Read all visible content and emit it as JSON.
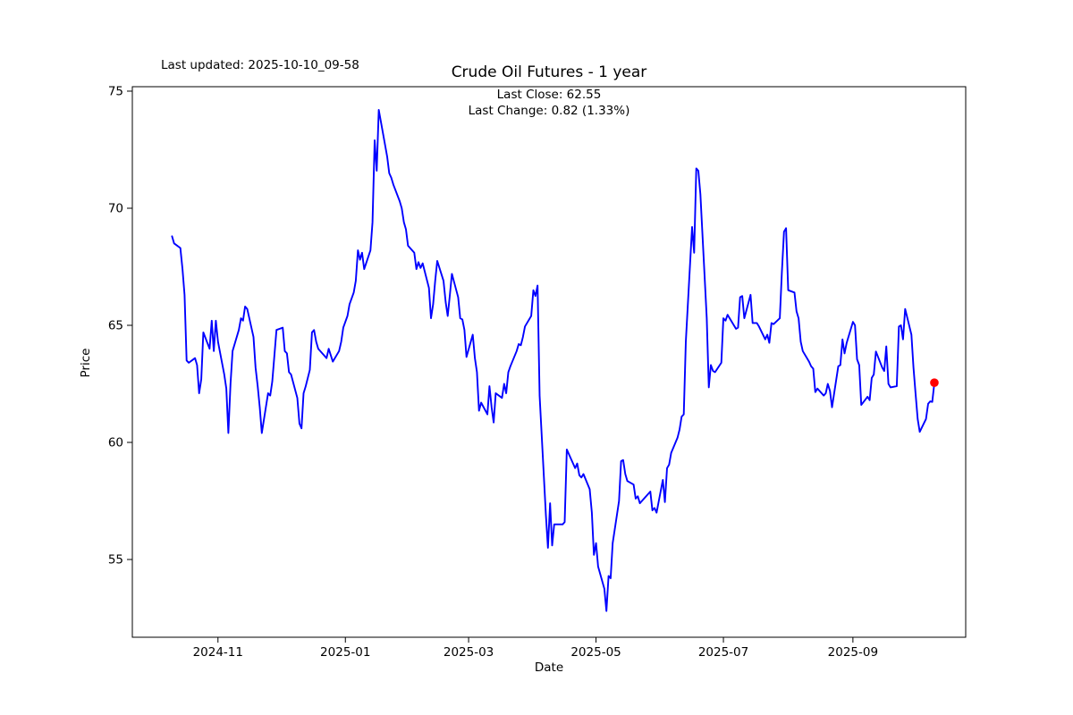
{
  "header": {
    "last_updated": "Last updated: 2025-10-10_09-58",
    "title": "Crude Oil Futures - 1 year",
    "annotation_line1": "Last Close: 62.55",
    "annotation_line2": "Last Change: 0.82 (1.33%)"
  },
  "chart_data": {
    "type": "line",
    "title": "Crude Oil Futures - 1 year",
    "xlabel": "Date",
    "ylabel": "Price",
    "last_close": 62.55,
    "last_change": 0.82,
    "last_change_pct": "1.33%",
    "line_color": "#0000ff",
    "marker_color": "#ff0000",
    "axis_color": "#000000",
    "grid": false,
    "legend": null,
    "ylim": [
      51.68,
      75.19
    ],
    "xlim": [
      "2024-09-21",
      "2025-10-25"
    ],
    "y_ticks": [
      55,
      60,
      65,
      70,
      75
    ],
    "x_ticks": [
      {
        "label": "2024-11",
        "date": "2024-11-01"
      },
      {
        "label": "2025-01",
        "date": "2025-01-01"
      },
      {
        "label": "2025-03",
        "date": "2025-03-01"
      },
      {
        "label": "2025-05",
        "date": "2025-05-01"
      },
      {
        "label": "2025-07",
        "date": "2025-07-01"
      },
      {
        "label": "2025-09",
        "date": "2025-09-01"
      }
    ],
    "last_point_marker": {
      "date": "2025-10-10",
      "value": 62.55,
      "color": "#ff0000"
    },
    "points": [
      [
        "2024-10-10",
        68.8
      ],
      [
        "2024-10-11",
        68.5
      ],
      [
        "2024-10-14",
        68.3
      ],
      [
        "2024-10-15",
        67.4
      ],
      [
        "2024-10-16",
        66.3
      ],
      [
        "2024-10-17",
        63.5
      ],
      [
        "2024-10-18",
        63.4
      ],
      [
        "2024-10-21",
        63.6
      ],
      [
        "2024-10-22",
        63.3
      ],
      [
        "2024-10-23",
        62.1
      ],
      [
        "2024-10-24",
        62.7
      ],
      [
        "2024-10-25",
        64.7
      ],
      [
        "2024-10-28",
        64.0
      ],
      [
        "2024-10-29",
        65.2
      ],
      [
        "2024-10-30",
        63.9
      ],
      [
        "2024-10-31",
        65.2
      ],
      [
        "2024-11-01",
        64.3
      ],
      [
        "2024-11-04",
        62.9
      ],
      [
        "2024-11-05",
        62.3
      ],
      [
        "2024-11-06",
        60.4
      ],
      [
        "2024-11-07",
        62.5
      ],
      [
        "2024-11-08",
        63.9
      ],
      [
        "2024-11-11",
        64.8
      ],
      [
        "2024-11-12",
        65.3
      ],
      [
        "2024-11-13",
        65.2
      ],
      [
        "2024-11-14",
        65.8
      ],
      [
        "2024-11-15",
        65.7
      ],
      [
        "2024-11-18",
        64.5
      ],
      [
        "2024-11-19",
        63.2
      ],
      [
        "2024-11-20",
        62.4
      ],
      [
        "2024-11-21",
        61.5
      ],
      [
        "2024-11-22",
        60.4
      ],
      [
        "2024-11-25",
        62.1
      ],
      [
        "2024-11-26",
        62.0
      ],
      [
        "2024-11-27",
        62.6
      ],
      [
        "2024-11-29",
        64.8
      ],
      [
        "2024-12-02",
        64.9
      ],
      [
        "2024-12-03",
        63.9
      ],
      [
        "2024-12-04",
        63.8
      ],
      [
        "2024-12-05",
        63.0
      ],
      [
        "2024-12-06",
        62.9
      ],
      [
        "2024-12-09",
        61.9
      ],
      [
        "2024-12-10",
        60.8
      ],
      [
        "2024-12-11",
        60.6
      ],
      [
        "2024-12-12",
        62.1
      ],
      [
        "2024-12-13",
        62.4
      ],
      [
        "2024-12-15",
        63.1
      ],
      [
        "2024-12-16",
        64.7
      ],
      [
        "2024-12-17",
        64.8
      ],
      [
        "2024-12-18",
        64.3
      ],
      [
        "2024-12-19",
        64.0
      ],
      [
        "2024-12-22",
        63.7
      ],
      [
        "2024-12-23",
        63.6
      ],
      [
        "2024-12-24",
        64.0
      ],
      [
        "2024-12-26",
        63.45
      ],
      [
        "2024-12-29",
        63.9
      ],
      [
        "2024-12-30",
        64.3
      ],
      [
        "2024-12-31",
        64.9
      ],
      [
        "2025-01-02",
        65.4
      ],
      [
        "2025-01-03",
        65.9
      ],
      [
        "2025-01-05",
        66.4
      ],
      [
        "2025-01-06",
        66.9
      ],
      [
        "2025-01-07",
        68.2
      ],
      [
        "2025-01-08",
        67.8
      ],
      [
        "2025-01-09",
        68.1
      ],
      [
        "2025-01-10",
        67.4
      ],
      [
        "2025-01-13",
        68.2
      ],
      [
        "2025-01-14",
        69.4
      ],
      [
        "2025-01-15",
        72.9
      ],
      [
        "2025-01-16",
        71.6
      ],
      [
        "2025-01-17",
        74.2
      ],
      [
        "2025-01-21",
        72.2
      ],
      [
        "2025-01-22",
        71.5
      ],
      [
        "2025-01-23",
        71.3
      ],
      [
        "2025-01-24",
        71.0
      ],
      [
        "2025-01-27",
        70.3
      ],
      [
        "2025-01-28",
        70.0
      ],
      [
        "2025-01-29",
        69.4
      ],
      [
        "2025-01-30",
        69.1
      ],
      [
        "2025-01-31",
        68.4
      ],
      [
        "2025-02-03",
        68.1
      ],
      [
        "2025-02-04",
        67.4
      ],
      [
        "2025-02-05",
        67.7
      ],
      [
        "2025-02-06",
        67.45
      ],
      [
        "2025-02-07",
        67.65
      ],
      [
        "2025-02-10",
        66.6
      ],
      [
        "2025-02-11",
        65.3
      ],
      [
        "2025-02-12",
        65.9
      ],
      [
        "2025-02-13",
        66.9
      ],
      [
        "2025-02-14",
        67.75
      ],
      [
        "2025-02-17",
        66.9
      ],
      [
        "2025-02-18",
        66.0
      ],
      [
        "2025-02-19",
        65.4
      ],
      [
        "2025-02-20",
        66.25
      ],
      [
        "2025-02-21",
        67.2
      ],
      [
        "2025-02-24",
        66.2
      ],
      [
        "2025-02-25",
        65.3
      ],
      [
        "2025-02-26",
        65.25
      ],
      [
        "2025-02-27",
        64.8
      ],
      [
        "2025-02-28",
        63.65
      ],
      [
        "2025-03-03",
        64.6
      ],
      [
        "2025-03-04",
        63.6
      ],
      [
        "2025-03-05",
        63.0
      ],
      [
        "2025-03-06",
        61.35
      ],
      [
        "2025-03-07",
        61.7
      ],
      [
        "2025-03-10",
        61.2
      ],
      [
        "2025-03-11",
        62.4
      ],
      [
        "2025-03-12",
        61.5
      ],
      [
        "2025-03-13",
        60.85
      ],
      [
        "2025-03-14",
        62.1
      ],
      [
        "2025-03-17",
        61.9
      ],
      [
        "2025-03-18",
        62.5
      ],
      [
        "2025-03-19",
        62.1
      ],
      [
        "2025-03-20",
        63.0
      ],
      [
        "2025-03-21",
        63.25
      ],
      [
        "2025-03-24",
        63.9
      ],
      [
        "2025-03-25",
        64.2
      ],
      [
        "2025-03-26",
        64.15
      ],
      [
        "2025-03-27",
        64.5
      ],
      [
        "2025-03-28",
        64.95
      ],
      [
        "2025-03-31",
        65.4
      ],
      [
        "2025-04-01",
        66.5
      ],
      [
        "2025-04-02",
        66.25
      ],
      [
        "2025-04-03",
        66.7
      ],
      [
        "2025-04-04",
        61.99
      ],
      [
        "2025-04-07",
        56.9
      ],
      [
        "2025-04-08",
        55.5
      ],
      [
        "2025-04-09",
        57.4
      ],
      [
        "2025-04-10",
        55.6
      ],
      [
        "2025-04-11",
        56.5
      ],
      [
        "2025-04-14",
        56.5
      ],
      [
        "2025-04-15",
        56.5
      ],
      [
        "2025-04-16",
        56.6
      ],
      [
        "2025-04-17",
        59.7
      ],
      [
        "2025-04-21",
        58.9
      ],
      [
        "2025-04-22",
        59.1
      ],
      [
        "2025-04-23",
        58.6
      ],
      [
        "2025-04-24",
        58.5
      ],
      [
        "2025-04-25",
        58.65
      ],
      [
        "2025-04-28",
        58.0
      ],
      [
        "2025-04-29",
        57.0
      ],
      [
        "2025-04-30",
        55.2
      ],
      [
        "2025-05-01",
        55.7
      ],
      [
        "2025-05-02",
        54.7
      ],
      [
        "2025-05-05",
        53.75
      ],
      [
        "2025-05-06",
        52.8
      ],
      [
        "2025-05-07",
        54.3
      ],
      [
        "2025-05-08",
        54.2
      ],
      [
        "2025-05-09",
        55.7
      ],
      [
        "2025-05-12",
        57.5
      ],
      [
        "2025-05-13",
        59.2
      ],
      [
        "2025-05-14",
        59.25
      ],
      [
        "2025-05-15",
        58.65
      ],
      [
        "2025-05-16",
        58.35
      ],
      [
        "2025-05-19",
        58.2
      ],
      [
        "2025-05-20",
        57.6
      ],
      [
        "2025-05-21",
        57.7
      ],
      [
        "2025-05-22",
        57.4
      ],
      [
        "2025-05-23",
        57.5
      ],
      [
        "2025-05-27",
        57.9
      ],
      [
        "2025-05-28",
        57.1
      ],
      [
        "2025-05-29",
        57.2
      ],
      [
        "2025-05-30",
        57.0
      ],
      [
        "2025-06-02",
        58.4
      ],
      [
        "2025-06-03",
        57.45
      ],
      [
        "2025-06-04",
        58.9
      ],
      [
        "2025-06-05",
        59.05
      ],
      [
        "2025-06-06",
        59.55
      ],
      [
        "2025-06-09",
        60.2
      ],
      [
        "2025-06-10",
        60.55
      ],
      [
        "2025-06-11",
        61.1
      ],
      [
        "2025-06-12",
        61.2
      ],
      [
        "2025-06-13",
        64.3
      ],
      [
        "2025-06-16",
        69.2
      ],
      [
        "2025-06-17",
        68.1
      ],
      [
        "2025-06-18",
        71.7
      ],
      [
        "2025-06-19",
        71.6
      ],
      [
        "2025-06-20",
        70.6
      ],
      [
        "2025-06-23",
        65.3
      ],
      [
        "2025-06-24",
        62.35
      ],
      [
        "2025-06-25",
        63.3
      ],
      [
        "2025-06-26",
        63.05
      ],
      [
        "2025-06-27",
        63.0
      ],
      [
        "2025-06-30",
        63.4
      ],
      [
        "2025-07-01",
        65.3
      ],
      [
        "2025-07-02",
        65.2
      ],
      [
        "2025-07-03",
        65.45
      ],
      [
        "2025-07-07",
        64.85
      ],
      [
        "2025-07-08",
        64.9
      ],
      [
        "2025-07-09",
        66.2
      ],
      [
        "2025-07-10",
        66.25
      ],
      [
        "2025-07-11",
        65.3
      ],
      [
        "2025-07-14",
        66.3
      ],
      [
        "2025-07-15",
        65.1
      ],
      [
        "2025-07-16",
        65.1
      ],
      [
        "2025-07-17",
        65.1
      ],
      [
        "2025-07-18",
        64.95
      ],
      [
        "2025-07-21",
        64.4
      ],
      [
        "2025-07-22",
        64.6
      ],
      [
        "2025-07-23",
        64.25
      ],
      [
        "2025-07-24",
        65.1
      ],
      [
        "2025-07-25",
        65.05
      ],
      [
        "2025-07-28",
        65.3
      ],
      [
        "2025-07-29",
        67.25
      ],
      [
        "2025-07-30",
        69.0
      ],
      [
        "2025-07-31",
        69.15
      ],
      [
        "2025-08-01",
        66.5
      ],
      [
        "2025-08-04",
        66.4
      ],
      [
        "2025-08-05",
        65.6
      ],
      [
        "2025-08-06",
        65.3
      ],
      [
        "2025-08-07",
        64.3
      ],
      [
        "2025-08-08",
        63.9
      ],
      [
        "2025-08-11",
        63.45
      ],
      [
        "2025-08-12",
        63.25
      ],
      [
        "2025-08-13",
        63.15
      ],
      [
        "2025-08-14",
        62.15
      ],
      [
        "2025-08-15",
        62.3
      ],
      [
        "2025-08-18",
        62.0
      ],
      [
        "2025-08-19",
        62.1
      ],
      [
        "2025-08-20",
        62.5
      ],
      [
        "2025-08-21",
        62.2
      ],
      [
        "2025-08-22",
        61.5
      ],
      [
        "2025-08-25",
        63.25
      ],
      [
        "2025-08-26",
        63.3
      ],
      [
        "2025-08-27",
        64.4
      ],
      [
        "2025-08-28",
        63.8
      ],
      [
        "2025-08-29",
        64.25
      ],
      [
        "2025-09-01",
        65.15
      ],
      [
        "2025-09-02",
        65.0
      ],
      [
        "2025-09-03",
        63.55
      ],
      [
        "2025-09-04",
        63.3
      ],
      [
        "2025-09-05",
        61.6
      ],
      [
        "2025-09-08",
        61.95
      ],
      [
        "2025-09-09",
        61.8
      ],
      [
        "2025-09-10",
        62.75
      ],
      [
        "2025-09-11",
        62.9
      ],
      [
        "2025-09-12",
        63.88
      ],
      [
        "2025-09-15",
        63.2
      ],
      [
        "2025-09-16",
        63.05
      ],
      [
        "2025-09-17",
        64.1
      ],
      [
        "2025-09-18",
        62.5
      ],
      [
        "2025-09-19",
        62.35
      ],
      [
        "2025-09-22",
        62.4
      ],
      [
        "2025-09-23",
        64.95
      ],
      [
        "2025-09-24",
        65.0
      ],
      [
        "2025-09-25",
        64.4
      ],
      [
        "2025-09-26",
        65.7
      ],
      [
        "2025-09-29",
        64.6
      ],
      [
        "2025-09-30",
        63.2
      ],
      [
        "2025-10-01",
        62.1
      ],
      [
        "2025-10-02",
        61.0
      ],
      [
        "2025-10-03",
        60.45
      ],
      [
        "2025-10-06",
        61.0
      ],
      [
        "2025-10-07",
        61.65
      ],
      [
        "2025-10-08",
        61.75
      ],
      [
        "2025-10-09",
        61.73
      ],
      [
        "2025-10-10",
        62.55
      ]
    ]
  }
}
